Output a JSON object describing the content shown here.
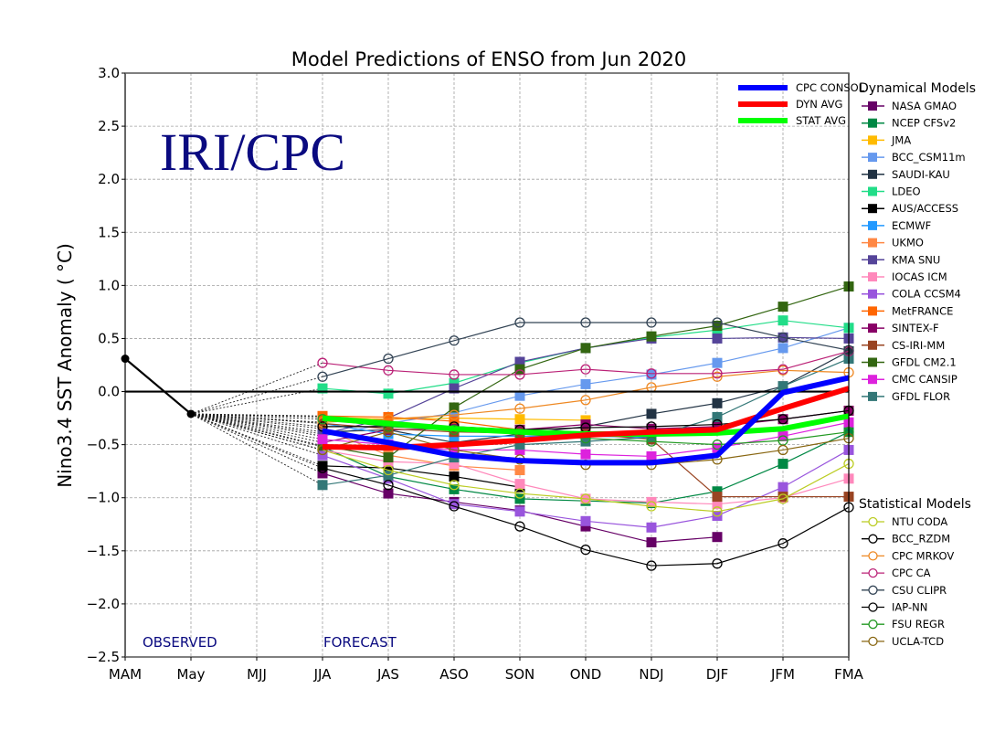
{
  "chart_data": {
    "type": "line",
    "title": "Model Predictions of ENSO from Jun 2020",
    "watermark": "IRI/CPC",
    "xlabel": "",
    "ylabel": "Nino3.4 SST Anomaly ( °C)",
    "ylim": [
      -2.5,
      3.0
    ],
    "yticks": [
      3.0,
      2.5,
      2.0,
      1.5,
      1.0,
      0.5,
      0.0,
      -0.5,
      -1.0,
      -1.5,
      -2.0,
      -2.5
    ],
    "ytick_labels": [
      "3.0",
      "2.5",
      "2.0",
      "1.5",
      "1.0",
      "0.5",
      "0.0",
      "−0.5",
      "−1.0",
      "−1.5",
      "−2.0",
      "−2.5"
    ],
    "categories": [
      "MAM",
      "May",
      "MJJ",
      "JJA",
      "JAS",
      "ASO",
      "SON",
      "OND",
      "NDJ",
      "DJF",
      "JFM",
      "FMA"
    ],
    "grid": true,
    "zero_line": true,
    "annotations": {
      "observed": "OBSERVED",
      "forecast": "FORECAST"
    },
    "observed": {
      "name": "Observed",
      "color": "#000000",
      "values": [
        0.31,
        -0.21
      ]
    },
    "legend_consensus": {
      "placement": "top-right-inside"
    },
    "consensus": [
      {
        "name": "CPC CONSOL",
        "color": "#0000ff",
        "values": [
          null,
          null,
          null,
          -0.37,
          -0.48,
          -0.6,
          -0.65,
          -0.67,
          -0.67,
          -0.6,
          -0.01,
          0.13
        ]
      },
      {
        "name": "DYN AVG",
        "color": "#ff0000",
        "values": [
          null,
          null,
          null,
          -0.52,
          -0.53,
          -0.5,
          -0.46,
          -0.41,
          -0.38,
          -0.36,
          -0.16,
          0.03
        ]
      },
      {
        "name": "STAT AVG",
        "color": "#00ff00",
        "values": [
          null,
          null,
          null,
          -0.25,
          -0.3,
          -0.35,
          -0.38,
          -0.4,
          -0.4,
          -0.39,
          -0.35,
          -0.23
        ]
      }
    ],
    "dynamical_header": "Dynamical Models",
    "statistical_header": "Statistical Models",
    "dynamical": [
      {
        "name": "NASA GMAO",
        "color": "#660066",
        "values": [
          null,
          null,
          null,
          -0.77,
          -0.96,
          -1.04,
          -1.12,
          -1.27,
          -1.42,
          -1.37,
          null,
          null
        ]
      },
      {
        "name": "NCEP CFSv2",
        "color": "#008844",
        "values": [
          null,
          null,
          null,
          -0.52,
          -0.8,
          -0.92,
          -1.01,
          -1.03,
          -1.05,
          -0.94,
          -0.68,
          -0.38
        ]
      },
      {
        "name": "JMA",
        "color": "#ffbb00",
        "values": [
          null,
          null,
          null,
          -0.24,
          -0.26,
          -0.25,
          -0.26,
          -0.27,
          null,
          null,
          null,
          null
        ]
      },
      {
        "name": "BCC_CSM11m",
        "color": "#6699ee",
        "values": [
          null,
          null,
          null,
          -0.42,
          -0.3,
          -0.2,
          -0.04,
          0.07,
          0.16,
          0.27,
          0.41,
          0.6
        ]
      },
      {
        "name": "SAUDI-KAU",
        "color": "#223344",
        "values": [
          null,
          null,
          null,
          -0.38,
          -0.36,
          -0.48,
          -0.4,
          -0.33,
          -0.21,
          -0.11,
          0.05,
          0.38
        ]
      },
      {
        "name": "LDEO",
        "color": "#22dd88",
        "values": [
          null,
          null,
          null,
          0.03,
          -0.02,
          0.08,
          0.27,
          0.41,
          0.51,
          0.58,
          0.67,
          0.6
        ]
      },
      {
        "name": "AUS/ACCESS",
        "color": "#000000",
        "values": [
          null,
          null,
          null,
          -0.7,
          -0.72,
          -0.8,
          -0.9,
          null,
          null,
          null,
          null,
          null
        ]
      },
      {
        "name": "ECMWF",
        "color": "#2299ff",
        "values": [
          null,
          null,
          null,
          -0.3,
          -0.4,
          -0.42,
          -0.42,
          -0.42,
          -0.43,
          null,
          null,
          null
        ]
      },
      {
        "name": "UKMO",
        "color": "#ff8844",
        "values": [
          null,
          null,
          null,
          -0.35,
          -0.6,
          -0.7,
          -0.74,
          null,
          null,
          null,
          null,
          null
        ]
      },
      {
        "name": "KMA SNU",
        "color": "#554499",
        "values": [
          null,
          null,
          null,
          -0.4,
          -0.25,
          0.03,
          0.28,
          0.41,
          0.5,
          0.5,
          0.51,
          0.5
        ]
      },
      {
        "name": "IOCAS ICM",
        "color": "#ff88bb",
        "values": [
          null,
          null,
          null,
          -0.55,
          -0.66,
          -0.68,
          -0.87,
          -1.01,
          -1.04,
          -1.06,
          -1.0,
          -0.82
        ]
      },
      {
        "name": "COLA CCSM4",
        "color": "#9955dd",
        "values": [
          null,
          null,
          null,
          -0.6,
          -0.82,
          -1.06,
          -1.13,
          -1.22,
          -1.28,
          -1.17,
          -0.9,
          -0.55
        ]
      },
      {
        "name": "MetFRANCE",
        "color": "#ff6600",
        "values": [
          null,
          null,
          null,
          -0.23,
          -0.24,
          -0.28,
          -0.36,
          null,
          null,
          null,
          null,
          null
        ]
      },
      {
        "name": "SINTEX-F",
        "color": "#880066",
        "values": [
          null,
          null,
          null,
          -0.48,
          -0.36,
          -0.35,
          -0.36,
          -0.31,
          -0.35,
          -0.33,
          -0.26,
          -0.18
        ]
      },
      {
        "name": "CS-IRI-MM",
        "color": "#994422",
        "values": [
          null,
          null,
          null,
          -0.3,
          -0.35,
          -0.38,
          -0.39,
          -0.4,
          -0.45,
          -0.99,
          -0.99,
          -0.99
        ]
      },
      {
        "name": "GFDL CM2.1",
        "color": "#336611",
        "values": [
          null,
          null,
          null,
          -0.51,
          -0.62,
          -0.15,
          0.21,
          0.41,
          0.52,
          0.62,
          0.8,
          0.99
        ]
      },
      {
        "name": "CMC CANSIP",
        "color": "#dd22dd",
        "values": [
          null,
          null,
          null,
          -0.45,
          -0.5,
          -0.55,
          -0.55,
          -0.59,
          -0.61,
          -0.53,
          -0.42,
          -0.29
        ]
      },
      {
        "name": "GFDL FLOR",
        "color": "#337777",
        "values": [
          null,
          null,
          null,
          -0.88,
          -0.79,
          -0.62,
          -0.5,
          -0.47,
          -0.43,
          -0.24,
          0.05,
          0.31
        ]
      }
    ],
    "statistical": [
      {
        "name": "NTU CODA",
        "color": "#bbcc22",
        "values": [
          null,
          null,
          null,
          -0.55,
          -0.74,
          -0.88,
          -0.96,
          -1.01,
          -1.08,
          -1.13,
          -1.01,
          -0.68
        ]
      },
      {
        "name": "BCC_RZDM",
        "color": "#000000",
        "values": [
          null,
          null,
          null,
          -0.72,
          -0.88,
          -1.08,
          -1.27,
          -1.49,
          -1.64,
          -1.62,
          -1.43,
          -1.09
        ]
      },
      {
        "name": "CPC MRKOV",
        "color": "#ee8822",
        "values": [
          null,
          null,
          null,
          -0.29,
          -0.26,
          -0.22,
          -0.16,
          -0.08,
          0.04,
          0.14,
          0.2,
          0.18
        ]
      },
      {
        "name": "CPC CA",
        "color": "#bb2277",
        "values": [
          null,
          null,
          null,
          0.27,
          0.2,
          0.16,
          0.16,
          0.21,
          0.17,
          0.17,
          0.21,
          0.38
        ]
      },
      {
        "name": "CSU CLIPR",
        "color": "#334455",
        "values": [
          null,
          null,
          null,
          0.14,
          0.31,
          0.48,
          0.65,
          0.65,
          0.65,
          0.65,
          0.51,
          0.39
        ]
      },
      {
        "name": "IAP-NN",
        "color": "#000000",
        "values": [
          null,
          null,
          null,
          -0.33,
          -0.33,
          -0.33,
          -0.36,
          -0.34,
          -0.33,
          -0.31,
          -0.26,
          -0.18
        ]
      },
      {
        "name": "FSU REGR",
        "color": "#229922",
        "values": [
          null,
          null,
          null,
          -0.26,
          -0.33,
          -0.36,
          -0.4,
          -0.44,
          -0.47,
          -0.5,
          -0.46,
          -0.38
        ]
      },
      {
        "name": "UCLA-TCD",
        "color": "#886611",
        "values": [
          null,
          null,
          null,
          -0.55,
          -0.38,
          -0.55,
          -0.64,
          -0.69,
          -0.69,
          -0.64,
          -0.55,
          -0.44
        ]
      }
    ]
  }
}
